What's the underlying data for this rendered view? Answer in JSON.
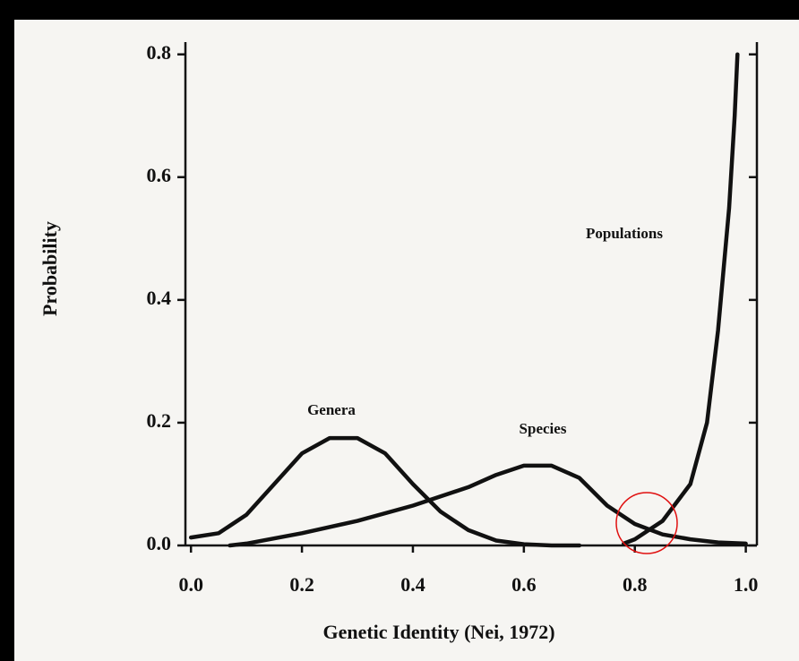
{
  "chart_data": {
    "type": "line",
    "xlabel": "Genetic Identity (Nei, 1972)",
    "ylabel": "Probability",
    "xlim": [
      -0.01,
      1.02
    ],
    "ylim": [
      0,
      0.82
    ],
    "xticks": [
      {
        "value": 0,
        "label": "0.0"
      },
      0.2,
      0.4,
      0.6,
      0.8,
      {
        "value": 1,
        "label": "1.0"
      }
    ],
    "yticks": [
      {
        "value": 0,
        "label": "0.0"
      },
      0.2,
      0.4,
      0.6,
      0.8
    ],
    "series": [
      {
        "name": "Genera",
        "color": "#111111",
        "x": [
          0,
          0.05,
          0.1,
          0.15,
          0.2,
          0.25,
          0.3,
          0.35,
          0.4,
          0.45,
          0.5,
          0.55,
          0.6,
          0.65,
          0.7
        ],
        "values": [
          0.013,
          0.02,
          0.05,
          0.1,
          0.15,
          0.175,
          0.175,
          0.15,
          0.1,
          0.055,
          0.025,
          0.008,
          0.002,
          0,
          0
        ]
      },
      {
        "name": "Species",
        "color": "#111111",
        "x": [
          0.07,
          0.1,
          0.2,
          0.3,
          0.4,
          0.5,
          0.55,
          0.6,
          0.65,
          0.7,
          0.75,
          0.8,
          0.85,
          0.9,
          0.95,
          1.0
        ],
        "values": [
          0,
          0.003,
          0.02,
          0.04,
          0.065,
          0.095,
          0.115,
          0.13,
          0.13,
          0.11,
          0.065,
          0.035,
          0.018,
          0.01,
          0.005,
          0.003
        ]
      },
      {
        "name": "Populations",
        "color": "#111111",
        "x": [
          0.78,
          0.8,
          0.85,
          0.9,
          0.93,
          0.95,
          0.97,
          0.98,
          0.985
        ],
        "values": [
          0.003,
          0.01,
          0.04,
          0.1,
          0.2,
          0.35,
          0.55,
          0.7,
          0.8
        ]
      }
    ]
  }
}
